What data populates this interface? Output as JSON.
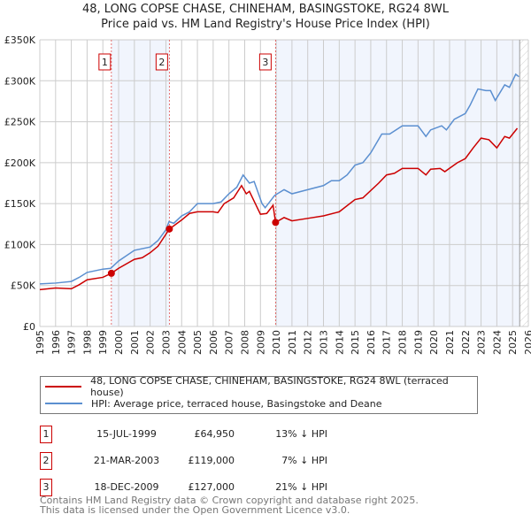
{
  "chart_data": {
    "type": "line",
    "title": "48, LONG COPSE CHASE, CHINEHAM, BASINGSTOKE, RG24 8WL",
    "subtitle": "Price paid vs. HM Land Registry's House Price Index (HPI)",
    "xlim": [
      1995,
      2026
    ],
    "ylim": [
      0,
      350000
    ],
    "x_ticks": [
      "1995",
      "1996",
      "1997",
      "1998",
      "1999",
      "2000",
      "2001",
      "2002",
      "2003",
      "2004",
      "2005",
      "2006",
      "2007",
      "2008",
      "2009",
      "2010",
      "2011",
      "2012",
      "2013",
      "2014",
      "2015",
      "2016",
      "2017",
      "2018",
      "2019",
      "2020",
      "2021",
      "2022",
      "2023",
      "2024",
      "2025",
      "2026"
    ],
    "y_ticks": [
      {
        "v": 0,
        "label": "£0"
      },
      {
        "v": 50000,
        "label": "£50K"
      },
      {
        "v": 100000,
        "label": "£100K"
      },
      {
        "v": 150000,
        "label": "£150K"
      },
      {
        "v": 200000,
        "label": "£200K"
      },
      {
        "v": 250000,
        "label": "£250K"
      },
      {
        "v": 300000,
        "label": "£300K"
      },
      {
        "v": 350000,
        "label": "£350K"
      }
    ],
    "grid": true,
    "series": [
      {
        "name": "48, LONG COPSE CHASE, CHINEHAM, BASINGSTOKE, RG24 8WL (terraced house)",
        "color": "#cc0000",
        "x": [
          1995,
          1996,
          1997,
          1997.5,
          1998,
          1999,
          1999.54,
          2000,
          2001,
          2001.5,
          2002,
          2002.5,
          2003.22,
          2004,
          2004.5,
          2005,
          2005.5,
          2006,
          2006.3,
          2006.7,
          2007.3,
          2007.8,
          2008.1,
          2008.3,
          2008.8,
          2009,
          2009.4,
          2009.8,
          2009.96,
          2010.5,
          2011,
          2012,
          2013,
          2014,
          2015,
          2015.5,
          2016.5,
          2017,
          2017.5,
          2018,
          2019,
          2019.5,
          2019.8,
          2020.4,
          2020.7,
          2021.5,
          2022,
          2022.5,
          2023,
          2023.5,
          2024,
          2024.5,
          2024.8,
          2025.3
        ],
        "y": [
          45000,
          47000,
          46000,
          51000,
          57000,
          60000,
          64950,
          71000,
          82000,
          84000,
          90000,
          98000,
          119000,
          130000,
          138000,
          140000,
          140000,
          140000,
          139000,
          150000,
          157000,
          172000,
          162000,
          165000,
          145000,
          137000,
          138000,
          148000,
          127000,
          133000,
          129000,
          132000,
          135000,
          140000,
          155000,
          157000,
          175000,
          185000,
          187000,
          193000,
          193000,
          185000,
          192000,
          193000,
          189000,
          200000,
          205000,
          218000,
          230000,
          228000,
          218000,
          232000,
          230000,
          242000
        ]
      },
      {
        "name": "HPI: Average price, terraced house, Basingstoke and Deane",
        "color": "#5b8fd0",
        "x": [
          1995,
          1996,
          1997,
          1997.5,
          1998,
          1999,
          1999.5,
          2000,
          2001,
          2002,
          2002.5,
          2003,
          2003.2,
          2003.5,
          2004,
          2004.5,
          2005,
          2006,
          2006.5,
          2007,
          2007.5,
          2007.9,
          2008.3,
          2008.6,
          2009.1,
          2009.3,
          2009.9,
          2010.5,
          2011,
          2012,
          2013,
          2013.5,
          2014,
          2014.5,
          2015,
          2015.5,
          2016,
          2016.7,
          2017.2,
          2018,
          2019,
          2019.5,
          2019.8,
          2020.5,
          2020.8,
          2021.3,
          2022,
          2022.3,
          2022.8,
          2023.3,
          2023.6,
          2023.9,
          2024.5,
          2024.8,
          2025.2,
          2025.4
        ],
        "y": [
          52000,
          53000,
          55000,
          60000,
          66000,
          70000,
          71000,
          80000,
          93000,
          97000,
          105000,
          118000,
          128000,
          126000,
          135000,
          140000,
          150000,
          150000,
          152000,
          162000,
          170000,
          185000,
          175000,
          177000,
          150000,
          145000,
          160000,
          167000,
          162000,
          167000,
          172000,
          178000,
          178000,
          185000,
          197000,
          200000,
          212000,
          235000,
          235000,
          245000,
          245000,
          232000,
          240000,
          245000,
          240000,
          253000,
          260000,
          270000,
          290000,
          288000,
          288000,
          276000,
          295000,
          292000,
          308000,
          305000
        ]
      }
    ],
    "sales": [
      {
        "num": "1",
        "x": 1999.54,
        "date": "15-JUL-1999",
        "price": "£64,950",
        "value": 64950,
        "hpi": "13% ↓ HPI"
      },
      {
        "num": "2",
        "x": 2003.22,
        "date": "21-MAR-2003",
        "price": "£119,000",
        "value": 119000,
        "hpi": "7% ↓ HPI"
      },
      {
        "num": "3",
        "x": 2009.96,
        "date": "18-DEC-2009",
        "price": "£127,000",
        "value": 127000,
        "hpi": "21% ↓ HPI"
      }
    ]
  },
  "footer": {
    "line1": "Contains HM Land Registry data © Crown copyright and database right 2025.",
    "line2": "This data is licensed under the Open Government Licence v3.0."
  }
}
